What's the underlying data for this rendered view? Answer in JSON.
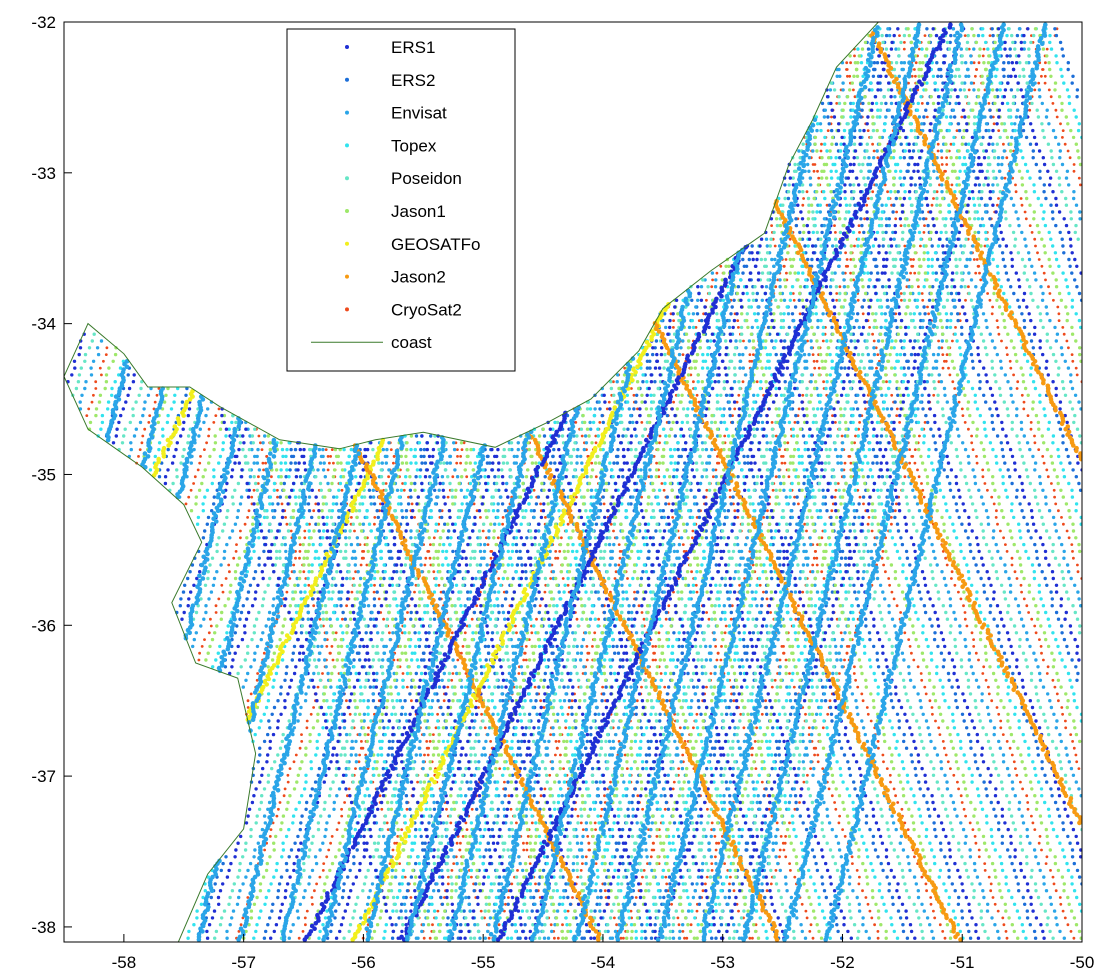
{
  "chart_data": {
    "type": "scatter",
    "title": "",
    "xlabel": "",
    "ylabel": "",
    "xlim": [
      -58.5,
      -50
    ],
    "ylim": [
      -38.1,
      -32
    ],
    "xticks": [
      -58,
      -57,
      -56,
      -55,
      -54,
      -53,
      -52,
      -51,
      -50
    ],
    "yticks": [
      -32,
      -33,
      -34,
      -35,
      -36,
      -37,
      -38
    ],
    "grid": false,
    "legend_position": "top-left (inside axes)",
    "series": [
      {
        "name": "ERS1",
        "color": "#1f2fd4",
        "marker": "dot",
        "tracks": "dense descending/ascending ground tracks, notably along -51.9 to -51.0 longitude"
      },
      {
        "name": "ERS2",
        "color": "#1c6ed8",
        "marker": "dot"
      },
      {
        "name": "Envisat",
        "color": "#2aa5e8",
        "marker": "dot"
      },
      {
        "name": "Topex",
        "color": "#31e3ee",
        "marker": "dot"
      },
      {
        "name": "Poseidon",
        "color": "#66e6c6",
        "marker": "dot"
      },
      {
        "name": "Jason1",
        "color": "#9ee86a",
        "marker": "dot"
      },
      {
        "name": "GEOSATFo",
        "color": "#f2ef1c",
        "marker": "dot"
      },
      {
        "name": "Jason2",
        "color": "#f79a12",
        "marker": "dot"
      },
      {
        "name": "CryoSat2",
        "color": "#ee4a1c",
        "marker": "dot"
      },
      {
        "name": "coast",
        "color": "#3a7a2c",
        "marker": "line"
      }
    ],
    "coast": [
      [
        -51.7,
        -32
      ],
      [
        -52.05,
        -32.3
      ],
      [
        -52.25,
        -32.65
      ],
      [
        -52.45,
        -32.95
      ],
      [
        -52.65,
        -33.4
      ],
      [
        -53.1,
        -33.65
      ],
      [
        -53.5,
        -33.9
      ],
      [
        -53.7,
        -34.18
      ],
      [
        -54.1,
        -34.5
      ],
      [
        -54.45,
        -34.65
      ],
      [
        -54.9,
        -34.82
      ],
      [
        -55.5,
        -34.72
      ],
      [
        -55.9,
        -34.77
      ],
      [
        -56.2,
        -34.83
      ],
      [
        -56.7,
        -34.77
      ],
      [
        -57.2,
        -34.55
      ],
      [
        -57.45,
        -34.42
      ],
      [
        -57.8,
        -34.42
      ],
      [
        -58.0,
        -34.2
      ],
      [
        -58.3,
        -34.0
      ],
      [
        -58.5,
        -34.35
      ],
      [
        -58.3,
        -34.7
      ],
      [
        -57.85,
        -34.95
      ],
      [
        -57.5,
        -35.2
      ],
      [
        -57.35,
        -35.45
      ],
      [
        -57.6,
        -35.85
      ],
      [
        -57.4,
        -36.25
      ],
      [
        -57.05,
        -36.35
      ],
      [
        -56.9,
        -36.85
      ],
      [
        -57.0,
        -37.35
      ],
      [
        -57.3,
        -37.65
      ],
      [
        -57.6,
        -38.2
      ]
    ],
    "track_families": [
      {
        "series": "GEOSATFo",
        "direction": "descending",
        "x_at_top": -52.3,
        "offsets": [
          0,
          -1.8,
          -3.6,
          -5.4
        ]
      },
      {
        "series": "Jason2",
        "direction": "ascending",
        "x_at_top": -51.8,
        "offsets": [
          0,
          -1.5,
          -3.0,
          -4.5,
          -6.0
        ]
      },
      {
        "series": "ERS1",
        "direction": "descending",
        "x_at_top": -51.9,
        "offsets": [
          0,
          0.8,
          -0.8
        ]
      },
      {
        "series": "Envisat",
        "direction": "mixed",
        "x_at_top": -50.3,
        "offsets": [
          0,
          -0.35,
          -0.7,
          -1.05,
          -1.4,
          -1.75,
          -2.1,
          -2.45,
          -2.8,
          -3.15,
          -3.5,
          -3.85,
          -4.2,
          -4.55,
          -4.9,
          -5.25,
          -5.6,
          -5.95,
          -6.3,
          -6.65,
          -7.0
        ]
      }
    ]
  }
}
